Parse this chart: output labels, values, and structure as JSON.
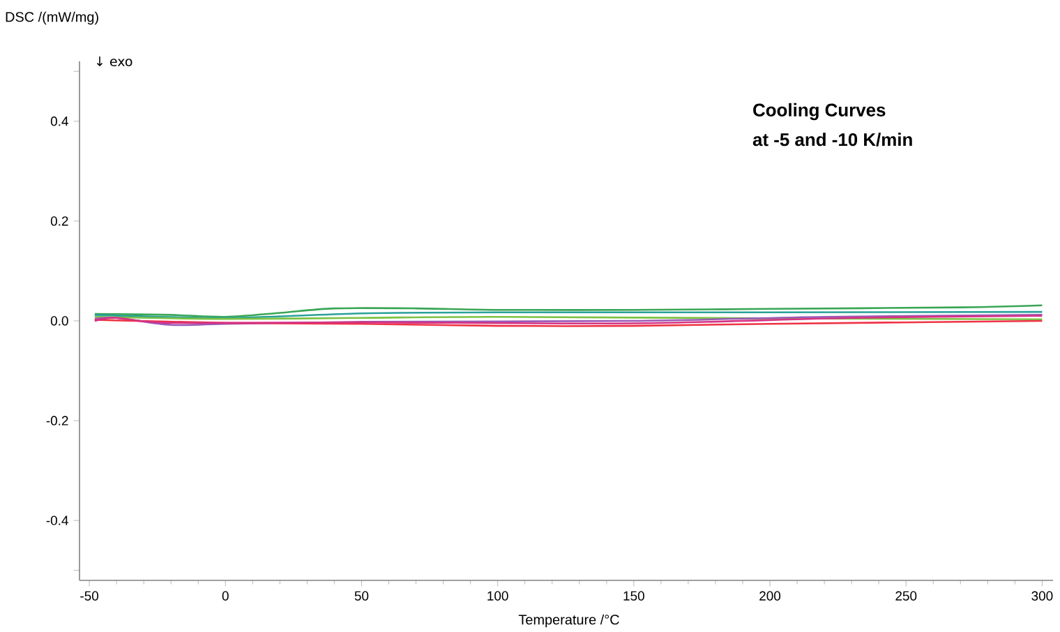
{
  "chart_data": {
    "type": "line",
    "xlabel": "Temperature /°C",
    "ylabel": "DSC /(mW/mg)",
    "annotations": [
      "↓ exo",
      "Cooling Curves",
      "at -5 and -10 K/min"
    ],
    "xlim": [
      -53.6,
      304
    ],
    "ylim": [
      -0.52,
      0.52
    ],
    "xticks": [
      -50,
      0,
      50,
      100,
      150,
      200,
      250,
      300
    ],
    "yticks": [
      {
        "value": -0.5,
        "label": null
      },
      -0.4,
      -0.2,
      {
        "value": 0,
        "label": "0.0"
      },
      0.2,
      0.4,
      {
        "value": 0.5,
        "label": null
      }
    ],
    "grid": false,
    "line_style": "solid",
    "marker": "none",
    "series": [
      {
        "color": "#3aa655",
        "x": [
          -48,
          -20,
          0,
          20,
          40,
          70,
          100,
          150,
          200,
          270,
          300
        ],
        "values": [
          0.014,
          0.012,
          0.008,
          0.016,
          0.025,
          0.025,
          0.022,
          0.022,
          0.024,
          0.027,
          0.031
        ]
      },
      {
        "color": "#2aa198",
        "x": [
          -48,
          0,
          50,
          100,
          200,
          300
        ],
        "values": [
          0.012,
          0.006,
          0.015,
          0.017,
          0.017,
          0.018
        ]
      },
      {
        "color": "#7cc242",
        "x": [
          -48,
          0,
          50,
          100,
          200,
          300
        ],
        "values": [
          0.008,
          0.004,
          0.006,
          0.008,
          0.005,
          0.003
        ]
      },
      {
        "color": "#9b59b6",
        "x": [
          -48,
          -40,
          -20,
          0,
          50,
          150,
          220,
          300
        ],
        "values": [
          0.004,
          0.006,
          -0.008,
          -0.006,
          -0.002,
          0.0,
          0.008,
          0.012
        ]
      },
      {
        "color": "#ee3344",
        "x": [
          -48,
          0,
          50,
          100,
          150,
          200,
          300
        ],
        "values": [
          0.002,
          -0.004,
          -0.006,
          -0.01,
          -0.01,
          -0.006,
          0.0
        ]
      },
      {
        "color": "#d63384",
        "x": [
          -48,
          -40,
          -20,
          50,
          150,
          230,
          300
        ],
        "values": [
          0.0,
          0.006,
          -0.004,
          -0.003,
          -0.005,
          0.006,
          0.01
        ]
      }
    ]
  }
}
